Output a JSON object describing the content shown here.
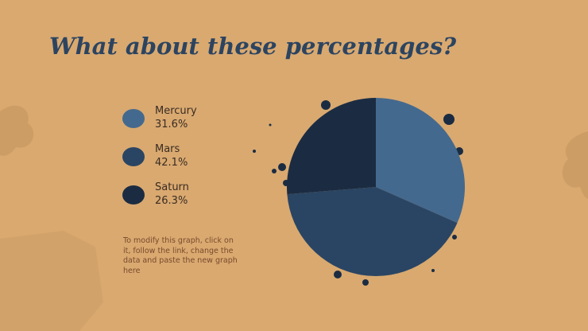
{
  "chart_data": {
    "type": "pie",
    "title": "What about these percentages?",
    "categories": [
      "Mercury",
      "Mars",
      "Saturn"
    ],
    "values": [
      31.6,
      42.1,
      26.3
    ],
    "value_labels": [
      "31.6%",
      "42.1%",
      "26.3%"
    ],
    "colors": [
      "#44698e",
      "#2a4563",
      "#1b2c42"
    ],
    "annotations": [
      "To modify this graph, click on it, follow the link, change the data and paste the new graph here"
    ]
  }
}
